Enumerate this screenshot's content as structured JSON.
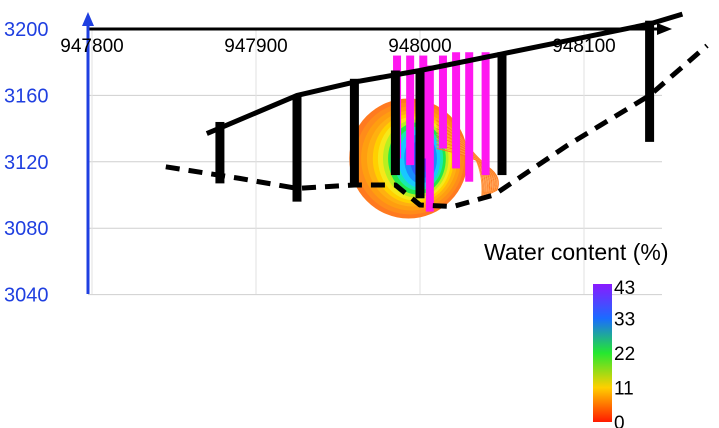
{
  "chart_data": {
    "type": "heatmap",
    "title": "",
    "xlabel": "",
    "ylabel": "",
    "x_ticks": [
      947800,
      947900,
      948000,
      948100
    ],
    "y_ticks": [
      3200,
      3160,
      3120,
      3080,
      3040
    ],
    "xlim": [
      947800,
      948160
    ],
    "ylim": [
      3040,
      3200
    ],
    "colorbar": {
      "title": "Water content (%)",
      "ticks": [
        43,
        33,
        22,
        11,
        0
      ],
      "range": [
        0,
        43
      ]
    },
    "series": [
      {
        "style": "solid",
        "points": [
          [
            947870,
            3137
          ],
          [
            947925,
            3160
          ],
          [
            947960,
            3168
          ],
          [
            948000,
            3175
          ],
          [
            948050,
            3185
          ],
          [
            948100,
            3195
          ],
          [
            948140,
            3203
          ],
          [
            948160,
            3209
          ]
        ]
      },
      {
        "style": "dashed",
        "points": [
          [
            947845,
            3117
          ],
          [
            947890,
            3110
          ],
          [
            947925,
            3104
          ],
          [
            947960,
            3106
          ],
          [
            947985,
            3106
          ],
          [
            948000,
            3094
          ],
          [
            948020,
            3093
          ],
          [
            948045,
            3100
          ],
          [
            948090,
            3130
          ],
          [
            948140,
            3160
          ],
          [
            948175,
            3190
          ]
        ]
      }
    ],
    "boreholes": [
      {
        "x": 947878,
        "top": 3144,
        "bottom": 3107
      },
      {
        "x": 947925,
        "top": 3160,
        "bottom": 3096
      },
      {
        "x": 947960,
        "top": 3170,
        "bottom": 3106
      },
      {
        "x": 947985,
        "top": 3175,
        "bottom": 3112
      },
      {
        "x": 948000,
        "top": 3176,
        "bottom": 3098
      },
      {
        "x": 948050,
        "top": 3186,
        "bottom": 3112
      },
      {
        "x": 948140,
        "top": 3205,
        "bottom": 3132
      }
    ],
    "water_content_columns": [
      {
        "x": 947986,
        "top": 3184,
        "bottom": 3122
      },
      {
        "x": 947994,
        "top": 3184,
        "bottom": 3118
      },
      {
        "x": 948002,
        "top": 3184,
        "bottom": 3122
      },
      {
        "x": 948006,
        "top": 3178,
        "bottom": 3090
      },
      {
        "x": 948014,
        "top": 3184,
        "bottom": 3128
      },
      {
        "x": 948022,
        "top": 3186,
        "bottom": 3116
      },
      {
        "x": 948030,
        "top": 3186,
        "bottom": 3108
      },
      {
        "x": 948040,
        "top": 3186,
        "bottom": 3112
      }
    ],
    "plume": {
      "center_x": 948004,
      "center_y": 3122,
      "peak_value": 43
    }
  }
}
